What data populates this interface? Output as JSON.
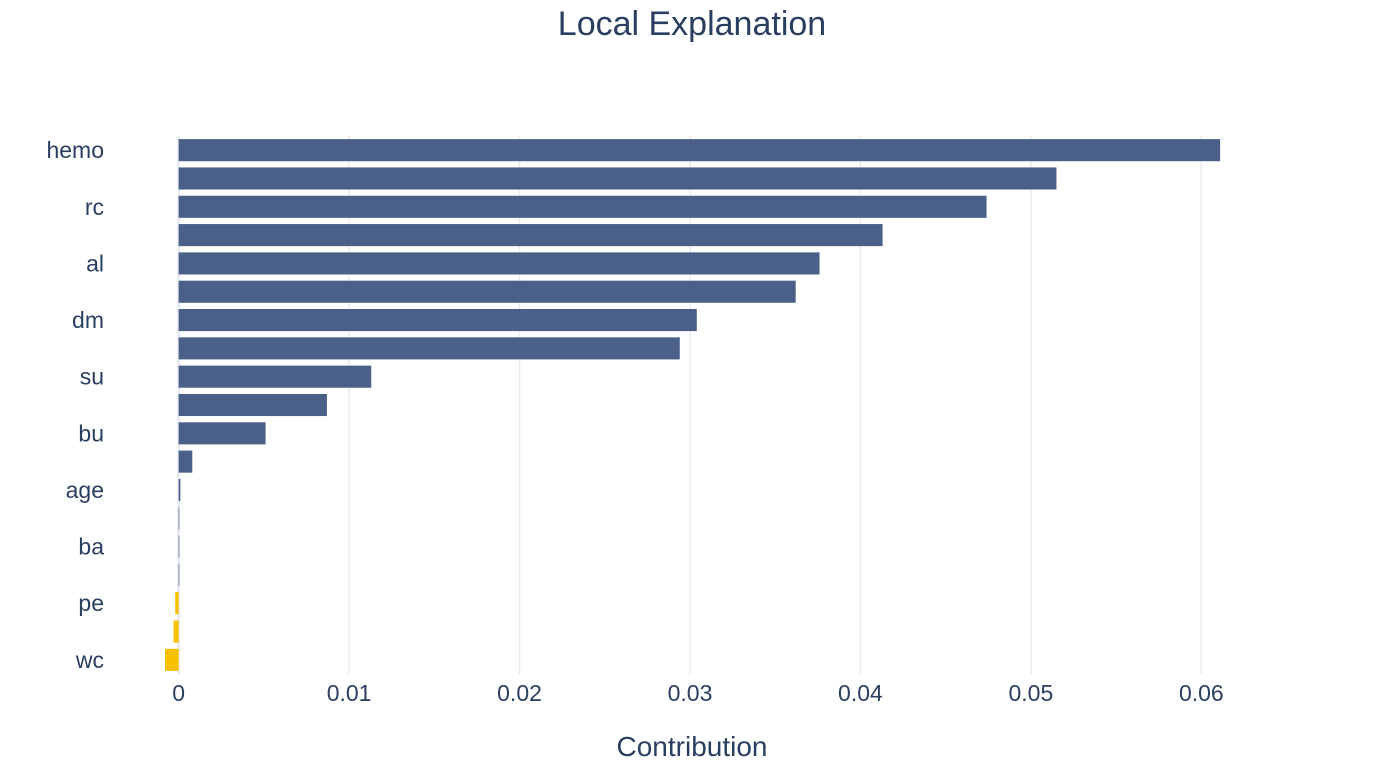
{
  "chart_data": {
    "type": "bar",
    "orientation": "horizontal",
    "title": "Local Explanation",
    "xlabel": "Contribution",
    "ylabel": "",
    "xlim": [
      -0.0008,
      0.0635
    ],
    "x_ticks": [
      0,
      0.01,
      0.02,
      0.03,
      0.04,
      0.05,
      0.06
    ],
    "x_tick_labels": [
      "0",
      "0.01",
      "0.02",
      "0.03",
      "0.04",
      "0.05",
      "0.06"
    ],
    "categories": [
      "hemo",
      "",
      "rc",
      "",
      "al",
      "",
      "dm",
      "",
      "su",
      "",
      "bu",
      "",
      "age",
      "",
      "ba",
      "",
      "pe",
      "",
      "wc"
    ],
    "values": [
      0.0611,
      0.0515,
      0.0474,
      0.0413,
      0.0376,
      0.0362,
      0.0304,
      0.0294,
      0.0113,
      0.0087,
      0.0051,
      0.0008,
      0.0001,
      2e-05,
      1e-05,
      0.0,
      -0.0002,
      -0.0003,
      -0.0008
    ],
    "positive_color": "#4a6089",
    "negative_color": "#f6c003",
    "grid": true,
    "legend": "none"
  }
}
